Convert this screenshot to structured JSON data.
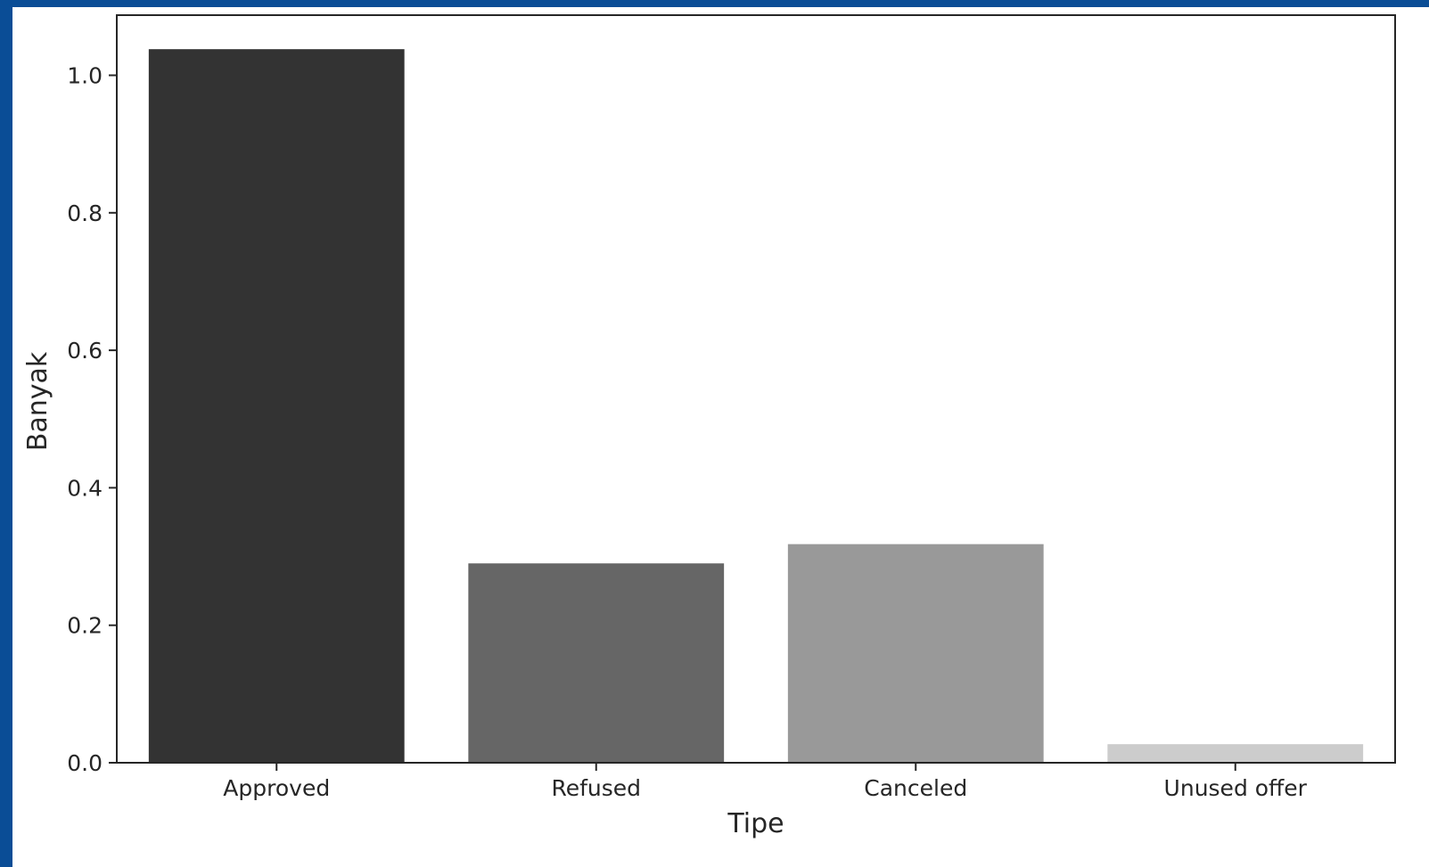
{
  "chart_data": {
    "type": "bar",
    "categories": [
      "Approved",
      "Refused",
      "Canceled",
      "Unused offer"
    ],
    "values": [
      1.038,
      0.29,
      0.318,
      0.027
    ],
    "colors": [
      "#333333",
      "#666666",
      "#999999",
      "#cccccc"
    ],
    "xlabel": "Tipe",
    "ylabel": "Banyak",
    "ylim": [
      0,
      1.0875
    ],
    "yticks": [
      0.0,
      0.2,
      0.4,
      0.6,
      0.8,
      1.0
    ],
    "ytick_labels": [
      "0.0",
      "0.2",
      "0.4",
      "0.6",
      "0.8",
      "1.0"
    ],
    "grid": false,
    "legend": "none"
  }
}
